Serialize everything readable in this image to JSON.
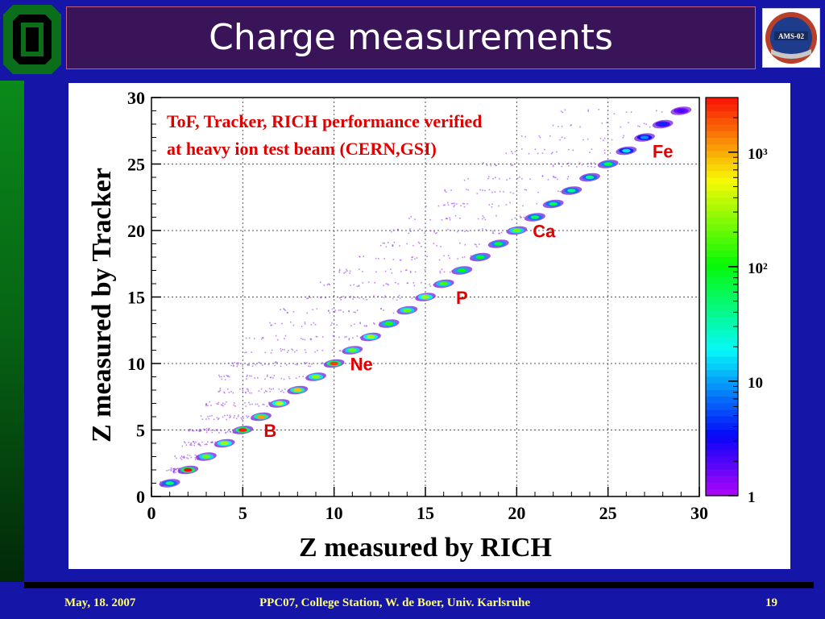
{
  "slide": {
    "title": "Charge measurements",
    "footer_date": "May, 18. 2007",
    "footer_center": "PPC07, College Station, W. de Boer,  Univ. Karlsruhe",
    "page_number": "19",
    "logo_right_text": "AMS-02"
  },
  "chart_data": {
    "type": "scatter",
    "xlabel": "Z measured by RICH",
    "ylabel": "Z measured by Tracker",
    "xlim": [
      0,
      30
    ],
    "ylim": [
      0,
      30
    ],
    "x_ticks": [
      "0",
      "5",
      "10",
      "15",
      "20",
      "25",
      "30"
    ],
    "y_ticks": [
      "0",
      "5",
      "10",
      "15",
      "20",
      "25",
      "30"
    ],
    "grid": true,
    "colorbar": {
      "scale": "log",
      "range": [
        1,
        3000
      ],
      "ticks": [
        {
          "value": 1,
          "label": "1"
        },
        {
          "value": 10,
          "label": "10"
        },
        {
          "value": 100,
          "label": "10²"
        },
        {
          "value": 1000,
          "label": "10³"
        }
      ]
    },
    "annotation_lines": [
      "ToF,  Tracker, RICH performance verified",
      "at heavy  ion test beam (CERN,GSI)"
    ],
    "element_labels": [
      {
        "text": "B",
        "x": 6.5,
        "y": 4.5
      },
      {
        "text": "Ne",
        "x": 11.5,
        "y": 9.5
      },
      {
        "text": "P",
        "x": 17,
        "y": 14.5
      },
      {
        "text": "Ca",
        "x": 21.5,
        "y": 19.5
      },
      {
        "text": "Fe",
        "x": 28,
        "y": 25.5
      }
    ],
    "clusters": [
      {
        "z": 1,
        "counts": 40
      },
      {
        "z": 2,
        "counts": 3000
      },
      {
        "z": 3,
        "counts": 200
      },
      {
        "z": 4,
        "counts": 300
      },
      {
        "z": 5,
        "counts": 2500
      },
      {
        "z": 6,
        "counts": 1000
      },
      {
        "z": 7,
        "counts": 400
      },
      {
        "z": 8,
        "counts": 800
      },
      {
        "z": 9,
        "counts": 250
      },
      {
        "z": 10,
        "counts": 2000
      },
      {
        "z": 11,
        "counts": 200
      },
      {
        "z": 12,
        "counts": 300
      },
      {
        "z": 13,
        "counts": 120
      },
      {
        "z": 14,
        "counts": 200
      },
      {
        "z": 15,
        "counts": 300
      },
      {
        "z": 16,
        "counts": 150
      },
      {
        "z": 17,
        "counts": 100
      },
      {
        "z": 18,
        "counts": 80
      },
      {
        "z": 19,
        "counts": 70
      },
      {
        "z": 20,
        "counts": 200
      },
      {
        "z": 21,
        "counts": 50
      },
      {
        "z": 22,
        "counts": 50
      },
      {
        "z": 23,
        "counts": 40
      },
      {
        "z": 24,
        "counts": 40
      },
      {
        "z": 25,
        "counts": 60
      },
      {
        "z": 26,
        "counts": 15
      },
      {
        "z": 27,
        "counts": 8
      },
      {
        "z": 28,
        "counts": 4
      },
      {
        "z": 29,
        "counts": 2
      }
    ]
  }
}
